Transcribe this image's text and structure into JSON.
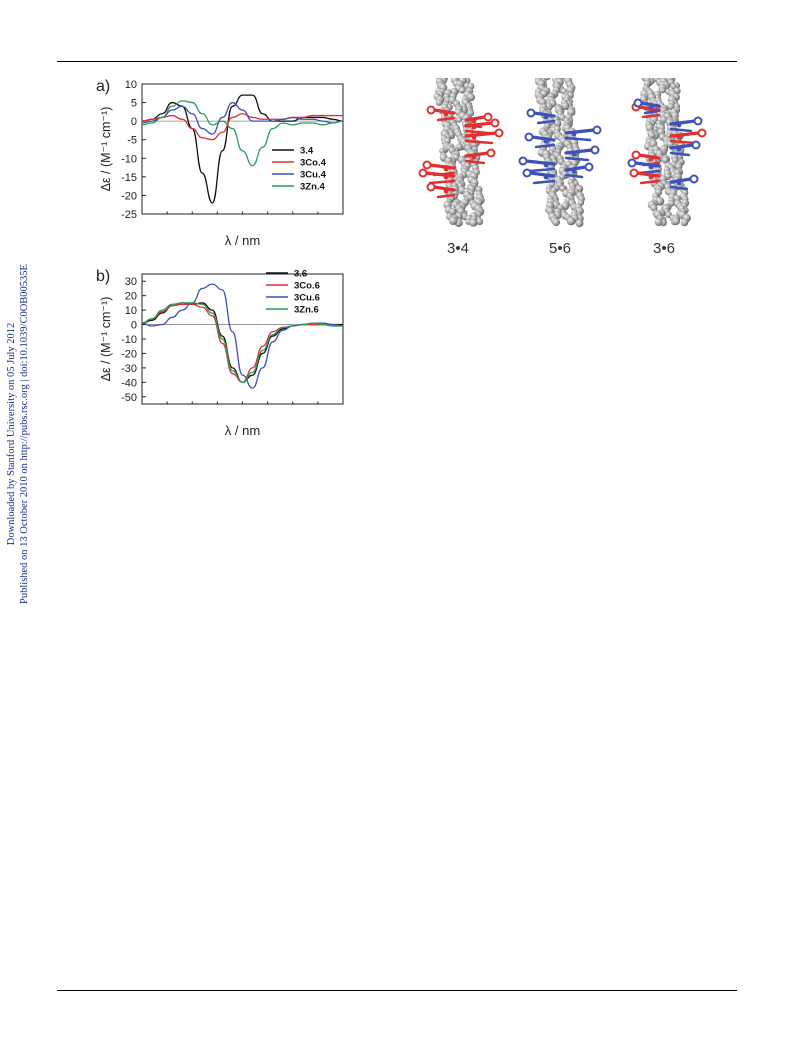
{
  "sidebar": {
    "line1": "Downloaded by Stanford University on 05 July 2012",
    "line2": "Published on 13 October 2010 on http://pubs.rsc.org | doi:10.1039/C0OB00535E"
  },
  "panels": {
    "a": {
      "label": "a)"
    },
    "b": {
      "label": "b)"
    }
  },
  "helices": {
    "labels": [
      "3•4",
      "5•6",
      "3•6"
    ]
  },
  "colors": {
    "black": "#111111",
    "red": "#e03030",
    "blue": "#3c52b8",
    "green": "#2e9a5a",
    "axis": "#222222"
  },
  "chart_data": [
    {
      "type": "line",
      "panel": "a)",
      "xlabel": "λ / nm",
      "ylabel": "Δε / (M⁻¹ cm⁻¹)",
      "xlim": [
        390,
        490
      ],
      "ylim": [
        -25,
        10
      ],
      "xticks": [
        400,
        425,
        450,
        475
      ],
      "yticks": [
        10,
        5,
        0,
        -5,
        -10,
        -15,
        -20,
        -25
      ],
      "legend_position": "right",
      "series": [
        {
          "name": "3.4",
          "color": "#111111",
          "x": [
            390,
            395,
            400,
            405,
            410,
            415,
            420,
            425,
            430,
            435,
            440,
            445,
            450,
            455,
            460,
            465,
            470,
            475,
            480,
            485,
            490
          ],
          "y": [
            0,
            0.5,
            2,
            5,
            4,
            -2,
            -14,
            -22,
            -8,
            4,
            7,
            7,
            2,
            0,
            0,
            0,
            1,
            1,
            1,
            0.5,
            0
          ]
        },
        {
          "name": "3Co.4",
          "color": "#e03030",
          "x": [
            390,
            395,
            400,
            405,
            410,
            415,
            420,
            425,
            430,
            435,
            440,
            445,
            450,
            455,
            460,
            465,
            470,
            475,
            480,
            485,
            490
          ],
          "y": [
            0,
            0.5,
            1,
            1.5,
            0.5,
            -2,
            -4.5,
            -5,
            -3,
            1,
            2,
            1,
            0.5,
            0.5,
            0.5,
            1,
            1,
            1.5,
            1.5,
            1.5,
            1.5
          ]
        },
        {
          "name": "3Cu.4",
          "color": "#3c52b8",
          "x": [
            390,
            395,
            400,
            405,
            410,
            415,
            420,
            425,
            430,
            435,
            440,
            445,
            450,
            455,
            460,
            465,
            470,
            475,
            480,
            485,
            490
          ],
          "y": [
            -0.5,
            0,
            1,
            3,
            4,
            2,
            -2,
            -3.5,
            1,
            5,
            3,
            0,
            0,
            0,
            0.5,
            1,
            0.5,
            0.5,
            0,
            -0.5,
            0
          ]
        },
        {
          "name": "3Zn.4",
          "color": "#2e9a5a",
          "x": [
            390,
            395,
            400,
            405,
            410,
            415,
            420,
            425,
            430,
            435,
            440,
            445,
            450,
            455,
            460,
            465,
            470,
            475,
            480,
            485,
            490
          ],
          "y": [
            -1,
            -0.5,
            1,
            4,
            5.5,
            5,
            2,
            -1,
            0,
            -2,
            -8,
            -12,
            -7,
            -2,
            -0.5,
            -1,
            -0.5,
            -0.5,
            -1,
            -0.5,
            0
          ]
        }
      ]
    },
    {
      "type": "line",
      "panel": "b)",
      "xlabel": "λ / nm",
      "ylabel": "Δε / (M⁻¹ cm⁻¹)",
      "xlim": [
        390,
        490
      ],
      "ylim": [
        -55,
        35
      ],
      "xticks": [
        400,
        425,
        450,
        475
      ],
      "yticks": [
        30,
        20,
        10,
        0,
        -10,
        -20,
        -30,
        -40,
        -50
      ],
      "legend_position": "top-right",
      "series": [
        {
          "name": "3.6",
          "color": "#111111",
          "x": [
            390,
            395,
            400,
            405,
            410,
            415,
            420,
            425,
            430,
            435,
            440,
            445,
            450,
            455,
            460,
            465,
            470,
            475,
            480,
            485,
            490
          ],
          "y": [
            1,
            3,
            8,
            13,
            15,
            14,
            15,
            10,
            -8,
            -30,
            -40,
            -35,
            -20,
            -8,
            -3,
            -1,
            0,
            0,
            0,
            0,
            0
          ]
        },
        {
          "name": "3Co.6",
          "color": "#e03030",
          "x": [
            390,
            395,
            400,
            405,
            410,
            415,
            420,
            425,
            430,
            435,
            440,
            445,
            450,
            455,
            460,
            465,
            470,
            475,
            480,
            485,
            490
          ],
          "y": [
            1,
            4,
            9,
            13,
            14,
            14,
            12,
            6,
            -13,
            -34,
            -40,
            -30,
            -15,
            -5,
            -2,
            -1,
            0,
            0,
            0,
            -1,
            -1
          ]
        },
        {
          "name": "3Cu.6",
          "color": "#3c52b8",
          "x": [
            390,
            395,
            400,
            405,
            410,
            415,
            420,
            425,
            430,
            435,
            440,
            445,
            450,
            455,
            460,
            465,
            470,
            475,
            480,
            485,
            490
          ],
          "y": [
            1,
            -1,
            0,
            5,
            10,
            15,
            25,
            28,
            24,
            -5,
            -35,
            -44,
            -30,
            -12,
            -4,
            -1,
            0,
            1,
            1,
            0,
            -1
          ]
        },
        {
          "name": "3Zn.6",
          "color": "#2e9a5a",
          "x": [
            390,
            395,
            400,
            405,
            410,
            415,
            420,
            425,
            430,
            435,
            440,
            445,
            450,
            455,
            460,
            465,
            470,
            475,
            480,
            485,
            490
          ],
          "y": [
            1,
            4,
            10,
            14,
            15,
            15,
            14,
            8,
            -10,
            -32,
            -40,
            -33,
            -18,
            -7,
            -2,
            -1,
            0,
            1,
            0,
            -1,
            -1
          ]
        }
      ]
    }
  ]
}
